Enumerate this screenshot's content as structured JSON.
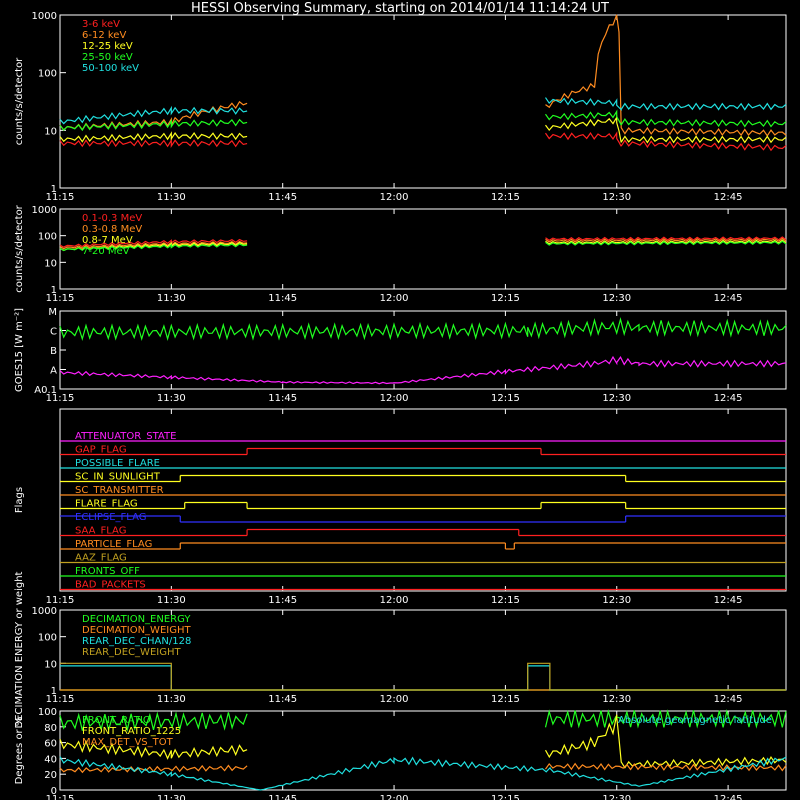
{
  "title": "HESSI Observing Summary, starting on 2014/01/14 11:14:24 UT",
  "colors": {
    "background": "#000000",
    "axes": "#ffffff",
    "red": "#ff2020",
    "orange": "#ff8c20",
    "yellow": "#ffff20",
    "green": "#20ff20",
    "cyan": "#20e0e0",
    "magenta": "#ff20ff",
    "blue": "#3030ff",
    "olive": "#c0a020"
  },
  "time_ticks": [
    "11:15",
    "11:30",
    "11:45",
    "12:00",
    "12:15",
    "12:30",
    "12:45"
  ],
  "chart_data": [
    {
      "id": "lightcurves",
      "type": "line",
      "ylabel": "counts/s/detector",
      "yscale": "log",
      "ylim": [
        1,
        1000
      ],
      "yticks": [
        "1",
        "10",
        "100",
        "1000"
      ],
      "x_range": [
        "11:15",
        "12:53"
      ],
      "series": [
        {
          "name": "3-6 keV",
          "color": "#ff2020",
          "x": [
            11.25,
            11.5,
            11.67,
            11.68,
            12.33,
            12.34,
            12.5,
            12.51,
            12.88
          ],
          "y": [
            6,
            6,
            6,
            null,
            null,
            8,
            8,
            6,
            5
          ]
        },
        {
          "name": "6-12 keV",
          "color": "#ff8c20",
          "x": [
            11.25,
            11.5,
            11.67,
            11.68,
            12.33,
            12.34,
            12.45,
            12.5,
            12.51,
            12.88
          ],
          "y": [
            11,
            14,
            30,
            null,
            null,
            25,
            60,
            900,
            10,
            9
          ]
        },
        {
          "name": "12-25 keV",
          "color": "#ffff20",
          "x": [
            11.25,
            11.5,
            11.67,
            11.68,
            12.33,
            12.34,
            12.5,
            12.51,
            12.88
          ],
          "y": [
            7,
            8,
            8,
            null,
            null,
            11,
            15,
            7,
            7
          ]
        },
        {
          "name": "25-50 keV",
          "color": "#20ff20",
          "x": [
            11.25,
            11.5,
            11.67,
            11.68,
            12.33,
            12.34,
            12.5,
            12.51,
            12.88
          ],
          "y": [
            11,
            13,
            14,
            null,
            null,
            17,
            19,
            14,
            13
          ]
        },
        {
          "name": "50-100 keV",
          "color": "#20e0e0",
          "x": [
            11.25,
            11.5,
            11.67,
            11.68,
            12.33,
            12.34,
            12.5,
            12.51,
            12.88
          ],
          "y": [
            14,
            22,
            22,
            null,
            null,
            33,
            30,
            26,
            26
          ]
        }
      ]
    },
    {
      "id": "high_energy",
      "type": "line",
      "ylabel": "counts/s/detector",
      "yscale": "log",
      "ylim": [
        1,
        1000
      ],
      "yticks": [
        "1",
        "10",
        "100",
        "1000"
      ],
      "series": [
        {
          "name": "0.1-0.3 MeV",
          "color": "#ff2020",
          "x": [
            11.25,
            11.5,
            11.67,
            11.68,
            12.33,
            12.34,
            12.88
          ],
          "y": [
            40,
            60,
            65,
            null,
            null,
            75,
            80
          ]
        },
        {
          "name": "0.3-0.8 MeV",
          "color": "#ff8c20",
          "x": [
            11.25,
            11.5,
            11.67,
            11.68,
            12.33,
            12.34,
            12.88
          ],
          "y": [
            35,
            50,
            55,
            null,
            null,
            65,
            70
          ]
        },
        {
          "name": "0.8-7 MeV",
          "color": "#ffff20",
          "x": [
            11.25,
            11.5,
            11.67,
            11.68,
            12.33,
            12.34,
            12.88
          ],
          "y": [
            30,
            45,
            50,
            null,
            null,
            55,
            60
          ]
        },
        {
          "name": "7-20 MeV",
          "color": "#20ff20",
          "x": [
            11.25,
            11.5,
            11.67,
            11.68,
            12.33,
            12.34,
            12.88
          ],
          "y": [
            30,
            40,
            45,
            null,
            null,
            50,
            55
          ]
        }
      ]
    },
    {
      "id": "goes",
      "type": "line",
      "ylabel": "GOES15 [W m⁻²]",
      "yticks": [
        "A0.1",
        "A",
        "B",
        "C",
        "M"
      ],
      "series": [
        {
          "color": "#20ff20",
          "x": [
            11.25,
            12.3,
            12.5,
            12.55,
            12.88
          ],
          "y": [
            2.9,
            3.0,
            3.2,
            3.15,
            3.1
          ]
        },
        {
          "color": "#ff20ff",
          "x": [
            11.25,
            11.5,
            11.75,
            12.0,
            12.25,
            12.45,
            12.5,
            12.55,
            12.88
          ],
          "y": [
            0.85,
            0.6,
            0.35,
            0.3,
            0.9,
            1.3,
            1.5,
            1.3,
            1.3
          ]
        }
      ]
    },
    {
      "id": "flags",
      "type": "line",
      "ylabel": "Flags",
      "series": [
        {
          "name": "ATTENUATOR_STATE",
          "color": "#ff20ff",
          "segments": [
            [
              11.25,
              12.88,
              0
            ]
          ]
        },
        {
          "name": "GAP_FLAG",
          "color": "#ff2020",
          "segments": [
            [
              11.25,
              11.67,
              0
            ],
            [
              11.67,
              12.33,
              1
            ],
            [
              12.33,
              12.88,
              0
            ]
          ]
        },
        {
          "name": "POSSIBLE_FLARE",
          "color": "#20e0e0",
          "segments": [
            [
              11.25,
              12.88,
              0
            ]
          ]
        },
        {
          "name": "SC_IN_SUNLIGHT",
          "color": "#ffff20",
          "segments": [
            [
              11.25,
              11.52,
              0
            ],
            [
              11.52,
              12.52,
              1
            ],
            [
              12.52,
              12.88,
              0
            ]
          ]
        },
        {
          "name": "SC_TRANSMITTER",
          "color": "#ff8c20",
          "segments": [
            [
              11.25,
              12.88,
              0
            ]
          ]
        },
        {
          "name": "FLARE_FLAG",
          "color": "#ffff20",
          "segments": [
            [
              11.25,
              11.53,
              0
            ],
            [
              11.53,
              11.67,
              1
            ],
            [
              11.67,
              12.33,
              0
            ],
            [
              12.33,
              12.52,
              1
            ],
            [
              12.52,
              12.88,
              0
            ]
          ]
        },
        {
          "name": "ECLIPSE_FLAG",
          "color": "#3030ff",
          "segments": [
            [
              11.25,
              11.52,
              1
            ],
            [
              11.52,
              12.52,
              0
            ],
            [
              12.52,
              12.88,
              1
            ]
          ]
        },
        {
          "name": "SAA_FLAG",
          "color": "#ff2020",
          "segments": [
            [
              11.25,
              11.67,
              0
            ],
            [
              11.67,
              12.28,
              1
            ],
            [
              12.28,
              12.88,
              0
            ]
          ]
        },
        {
          "name": "PARTICLE_FLAG",
          "color": "#ff8c20",
          "segments": [
            [
              11.25,
              11.52,
              0
            ],
            [
              11.52,
              12.25,
              1
            ],
            [
              12.25,
              12.27,
              0
            ],
            [
              12.27,
              12.88,
              1
            ]
          ]
        },
        {
          "name": "AAZ_FLAG",
          "color": "#c0a020",
          "segments": [
            [
              11.25,
              12.88,
              0
            ]
          ]
        },
        {
          "name": "FRONTS_OFF",
          "color": "#20ff20",
          "segments": [
            [
              11.25,
              12.88,
              0
            ]
          ]
        },
        {
          "name": "BAD_PACKETS",
          "color": "#ff2020",
          "segments": [
            [
              11.25,
              12.88,
              0
            ]
          ]
        }
      ]
    },
    {
      "id": "decimation",
      "type": "line",
      "ylabel": "DECIMATION ENERGY or weight",
      "yscale": "log",
      "ylim": [
        1,
        1000
      ],
      "yticks": [
        "1",
        "10",
        "100",
        "1000"
      ],
      "series": [
        {
          "name": "DECIMATION_ENERGY",
          "color": "#20ff20",
          "x": [
            11.25,
            12.88
          ],
          "y": [
            1,
            1
          ]
        },
        {
          "name": "DECIMATION_WEIGHT",
          "color": "#ff8c20",
          "x": [
            11.25,
            12.88
          ],
          "y": [
            1,
            1
          ]
        },
        {
          "name": "REAR_DEC_CHAN/128",
          "color": "#20e0e0",
          "x": [
            11.25,
            11.5,
            11.5,
            12.3,
            12.3,
            12.35,
            12.35,
            12.88
          ],
          "y": [
            8,
            8,
            1,
            1,
            8,
            8,
            1,
            1
          ]
        },
        {
          "name": "REAR_DEC_WEIGHT",
          "color": "#c0a020",
          "x": [
            11.25,
            11.5,
            11.5,
            12.3,
            12.3,
            12.35,
            12.35,
            12.88
          ],
          "y": [
            10,
            10,
            1,
            1,
            10,
            10,
            1,
            1
          ]
        }
      ]
    },
    {
      "id": "ratios",
      "type": "line",
      "ylabel": "Degrees or %",
      "ylim": [
        0,
        100
      ],
      "yticks": [
        "0",
        "20",
        "40",
        "60",
        "80",
        "100"
      ],
      "annotations": [
        "Absolute geomagnetic latitude"
      ],
      "series": [
        {
          "name": "FRONT_RATIO",
          "color": "#20ff20",
          "x": [
            11.25,
            11.67,
            11.68,
            12.33,
            12.34,
            12.88
          ],
          "y": [
            85,
            88,
            null,
            null,
            90,
            90
          ]
        },
        {
          "name": "FRONT_RATIO_1225",
          "color": "#ffff20",
          "x": [
            11.25,
            11.5,
            11.67,
            11.68,
            12.33,
            12.34,
            12.45,
            12.5,
            12.51,
            12.88
          ],
          "y": [
            58,
            45,
            52,
            null,
            null,
            45,
            60,
            85,
            32,
            38
          ]
        },
        {
          "name": "MAX_DET_VS_TOT",
          "color": "#ff8c20",
          "x": [
            11.25,
            11.67,
            11.68,
            12.33,
            12.34,
            12.88
          ],
          "y": [
            25,
            28,
            null,
            null,
            30,
            28
          ]
        },
        {
          "color": "#20e0e0",
          "x": [
            11.25,
            11.5,
            11.7,
            12.0,
            12.35,
            12.55,
            12.88
          ],
          "y": [
            38,
            20,
            0,
            38,
            25,
            5,
            40
          ]
        }
      ]
    }
  ]
}
